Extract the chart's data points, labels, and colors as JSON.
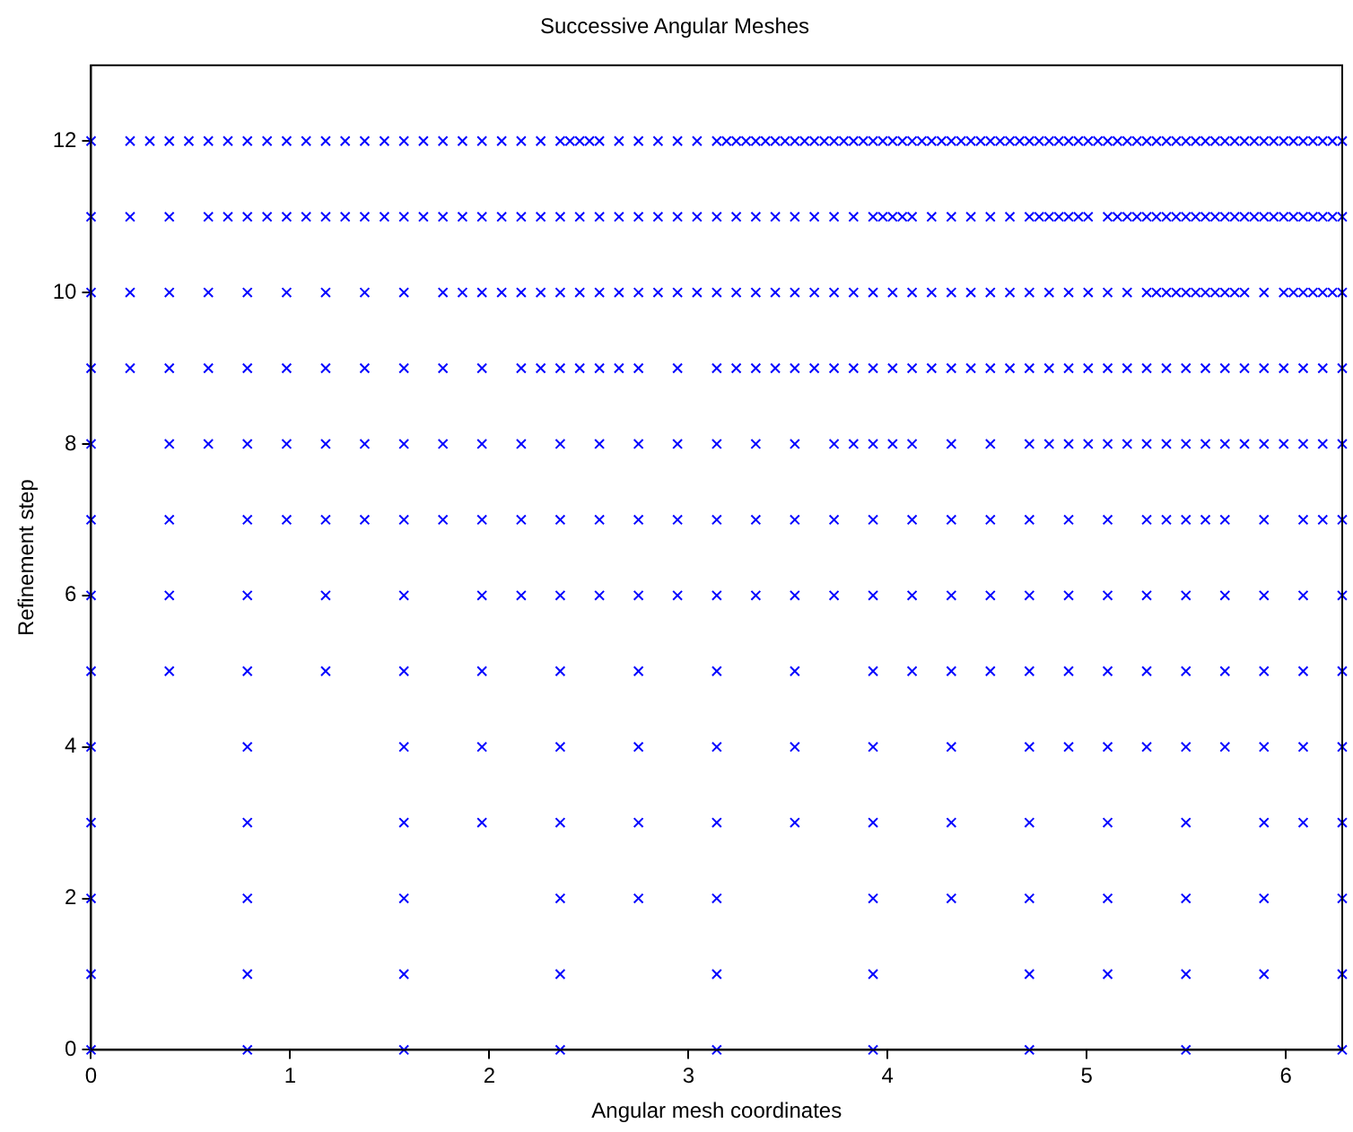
{
  "chart_data": {
    "type": "scatter",
    "title": "Successive Angular Meshes",
    "xlabel": "Angular mesh coordinates",
    "ylabel": "Refinement step",
    "marker": "cross",
    "xlim": [
      0,
      6.283
    ],
    "ylim": [
      0,
      13
    ],
    "xticks": [
      0,
      1,
      2,
      3,
      4,
      5,
      6
    ],
    "yticks": [
      0,
      2,
      4,
      6,
      8,
      10,
      12
    ],
    "series": [
      {
        "color": "#0000ff",
        "x": [
          0,
          0.785,
          1.571,
          2.356,
          3.142,
          3.927,
          4.712,
          5.498,
          6.283
        ],
        "values": [
          0,
          0,
          0,
          0,
          0,
          0,
          0,
          0,
          0
        ]
      },
      {
        "color": "#0000ff",
        "x": [
          0,
          0.785,
          1.571,
          2.356,
          3.142,
          3.927,
          4.712,
          5.105,
          5.498,
          5.89,
          6.283
        ],
        "values": [
          1,
          1,
          1,
          1,
          1,
          1,
          1,
          1,
          1,
          1,
          1
        ]
      },
      {
        "color": "#0000ff",
        "x": [
          0,
          0.785,
          1.571,
          2.356,
          2.749,
          3.142,
          3.927,
          4.32,
          4.712,
          5.105,
          5.498,
          5.89,
          6.283
        ],
        "values": [
          2,
          2,
          2,
          2,
          2,
          2,
          2,
          2,
          2,
          2,
          2,
          2,
          2
        ]
      },
      {
        "color": "#0000ff",
        "x": [
          0,
          0.785,
          1.571,
          1.963,
          2.356,
          2.749,
          3.142,
          3.534,
          3.927,
          4.32,
          4.712,
          5.105,
          5.498,
          5.89,
          6.087,
          6.283
        ],
        "values": [
          3,
          3,
          3,
          3,
          3,
          3,
          3,
          3,
          3,
          3,
          3,
          3,
          3,
          3,
          3,
          3
        ]
      },
      {
        "color": "#0000ff",
        "x": [
          0,
          0.785,
          1.571,
          1.963,
          2.356,
          2.749,
          3.142,
          3.534,
          3.927,
          4.32,
          4.712,
          4.909,
          5.105,
          5.301,
          5.498,
          5.694,
          5.89,
          6.087,
          6.283
        ],
        "values": [
          4,
          4,
          4,
          4,
          4,
          4,
          4,
          4,
          4,
          4,
          4,
          4,
          4,
          4,
          4,
          4,
          4,
          4,
          4
        ]
      },
      {
        "color": "#0000ff",
        "x": [
          0,
          0.393,
          0.785,
          1.178,
          1.571,
          1.963,
          2.356,
          2.749,
          3.142,
          3.534,
          3.927,
          4.123,
          4.32,
          4.516,
          4.712,
          4.909,
          5.105,
          5.301,
          5.498,
          5.694,
          5.89,
          6.087,
          6.283
        ],
        "values": [
          5,
          5,
          5,
          5,
          5,
          5,
          5,
          5,
          5,
          5,
          5,
          5,
          5,
          5,
          5,
          5,
          5,
          5,
          5,
          5,
          5,
          5,
          5
        ]
      },
      {
        "color": "#0000ff",
        "x": [
          0,
          0.393,
          0.785,
          1.178,
          1.571,
          1.963,
          2.16,
          2.356,
          2.553,
          2.749,
          2.945,
          3.142,
          3.338,
          3.534,
          3.731,
          3.927,
          4.123,
          4.32,
          4.516,
          4.712,
          4.909,
          5.105,
          5.301,
          5.498,
          5.694,
          5.89,
          6.087,
          6.283
        ],
        "values": [
          6,
          6,
          6,
          6,
          6,
          6,
          6,
          6,
          6,
          6,
          6,
          6,
          6,
          6,
          6,
          6,
          6,
          6,
          6,
          6,
          6,
          6,
          6,
          6,
          6,
          6,
          6,
          6
        ]
      },
      {
        "color": "#0000ff",
        "x": [
          0,
          0.393,
          0.785,
          0.982,
          1.178,
          1.374,
          1.571,
          1.767,
          1.963,
          2.16,
          2.356,
          2.553,
          2.749,
          2.945,
          3.142,
          3.338,
          3.534,
          3.731,
          3.927,
          4.123,
          4.32,
          4.516,
          4.712,
          4.909,
          5.105,
          5.301,
          5.4,
          5.498,
          5.596,
          5.694,
          5.89,
          6.087,
          6.185,
          6.283
        ],
        "values": [
          7,
          7,
          7,
          7,
          7,
          7,
          7,
          7,
          7,
          7,
          7,
          7,
          7,
          7,
          7,
          7,
          7,
          7,
          7,
          7,
          7,
          7,
          7,
          7,
          7,
          7,
          7,
          7,
          7,
          7,
          7,
          7,
          7,
          7
        ]
      },
      {
        "color": "#0000ff",
        "x": [
          0,
          0.393,
          0.589,
          0.785,
          0.982,
          1.178,
          1.374,
          1.571,
          1.767,
          1.963,
          2.16,
          2.356,
          2.553,
          2.749,
          2.945,
          3.142,
          3.338,
          3.534,
          3.731,
          3.829,
          3.927,
          4.025,
          4.123,
          4.32,
          4.516,
          4.712,
          4.811,
          4.909,
          5.007,
          5.105,
          5.203,
          5.301,
          5.4,
          5.498,
          5.596,
          5.694,
          5.792,
          5.89,
          5.989,
          6.087,
          6.185,
          6.283
        ],
        "values": [
          8,
          8,
          8,
          8,
          8,
          8,
          8,
          8,
          8,
          8,
          8,
          8,
          8,
          8,
          8,
          8,
          8,
          8,
          8,
          8,
          8,
          8,
          8,
          8,
          8,
          8,
          8,
          8,
          8,
          8,
          8,
          8,
          8,
          8,
          8,
          8,
          8,
          8,
          8,
          8,
          8,
          8
        ]
      },
      {
        "color": "#0000ff",
        "x": [
          0,
          0.196,
          0.393,
          0.589,
          0.785,
          0.982,
          1.178,
          1.374,
          1.571,
          1.767,
          1.963,
          2.16,
          2.258,
          2.356,
          2.454,
          2.553,
          2.651,
          2.749,
          2.945,
          3.142,
          3.24,
          3.338,
          3.436,
          3.534,
          3.632,
          3.731,
          3.829,
          3.927,
          4.025,
          4.123,
          4.221,
          4.32,
          4.418,
          4.516,
          4.614,
          4.712,
          4.811,
          4.909,
          5.007,
          5.105,
          5.203,
          5.301,
          5.4,
          5.498,
          5.596,
          5.694,
          5.792,
          5.89,
          5.989,
          6.087,
          6.185,
          6.283
        ],
        "values": [
          9,
          9,
          9,
          9,
          9,
          9,
          9,
          9,
          9,
          9,
          9,
          9,
          9,
          9,
          9,
          9,
          9,
          9,
          9,
          9,
          9,
          9,
          9,
          9,
          9,
          9,
          9,
          9,
          9,
          9,
          9,
          9,
          9,
          9,
          9,
          9,
          9,
          9,
          9,
          9,
          9,
          9,
          9,
          9,
          9,
          9,
          9,
          9,
          9,
          9,
          9,
          9
        ]
      },
      {
        "color": "#0000ff",
        "x": [
          0,
          0.196,
          0.393,
          0.589,
          0.785,
          0.982,
          1.178,
          1.374,
          1.571,
          1.767,
          1.865,
          1.963,
          2.062,
          2.16,
          2.258,
          2.356,
          2.454,
          2.553,
          2.651,
          2.749,
          2.847,
          2.945,
          3.043,
          3.142,
          3.24,
          3.338,
          3.436,
          3.534,
          3.632,
          3.731,
          3.829,
          3.927,
          4.025,
          4.123,
          4.221,
          4.32,
          4.418,
          4.516,
          4.614,
          4.712,
          4.811,
          4.909,
          5.007,
          5.105,
          5.203,
          5.301,
          5.35,
          5.4,
          5.449,
          5.498,
          5.547,
          5.596,
          5.645,
          5.694,
          5.743,
          5.792,
          5.89,
          5.989,
          6.038,
          6.087,
          6.136,
          6.185,
          6.234,
          6.283
        ],
        "values": [
          10,
          10,
          10,
          10,
          10,
          10,
          10,
          10,
          10,
          10,
          10,
          10,
          10,
          10,
          10,
          10,
          10,
          10,
          10,
          10,
          10,
          10,
          10,
          10,
          10,
          10,
          10,
          10,
          10,
          10,
          10,
          10,
          10,
          10,
          10,
          10,
          10,
          10,
          10,
          10,
          10,
          10,
          10,
          10,
          10,
          10,
          10,
          10,
          10,
          10,
          10,
          10,
          10,
          10,
          10,
          10,
          10,
          10,
          10,
          10,
          10,
          10,
          10,
          10
        ]
      },
      {
        "color": "#0000ff",
        "x": [
          0,
          0.196,
          0.393,
          0.589,
          0.687,
          0.785,
          0.884,
          0.982,
          1.08,
          1.178,
          1.276,
          1.374,
          1.473,
          1.571,
          1.669,
          1.767,
          1.865,
          1.963,
          2.062,
          2.16,
          2.258,
          2.356,
          2.454,
          2.553,
          2.651,
          2.749,
          2.847,
          2.945,
          3.043,
          3.142,
          3.24,
          3.338,
          3.436,
          3.534,
          3.632,
          3.731,
          3.829,
          3.927,
          3.976,
          4.025,
          4.074,
          4.123,
          4.221,
          4.32,
          4.418,
          4.516,
          4.614,
          4.712,
          4.761,
          4.811,
          4.86,
          4.909,
          4.958,
          5.007,
          5.105,
          5.154,
          5.203,
          5.252,
          5.301,
          5.35,
          5.4,
          5.449,
          5.498,
          5.547,
          5.596,
          5.645,
          5.694,
          5.743,
          5.792,
          5.841,
          5.89,
          5.939,
          5.989,
          6.038,
          6.087,
          6.136,
          6.185,
          6.234,
          6.283
        ],
        "values": [
          11,
          11,
          11,
          11,
          11,
          11,
          11,
          11,
          11,
          11,
          11,
          11,
          11,
          11,
          11,
          11,
          11,
          11,
          11,
          11,
          11,
          11,
          11,
          11,
          11,
          11,
          11,
          11,
          11,
          11,
          11,
          11,
          11,
          11,
          11,
          11,
          11,
          11,
          11,
          11,
          11,
          11,
          11,
          11,
          11,
          11,
          11,
          11,
          11,
          11,
          11,
          11,
          11,
          11,
          11,
          11,
          11,
          11,
          11,
          11,
          11,
          11,
          11,
          11,
          11,
          11,
          11,
          11,
          11,
          11,
          11,
          11,
          11,
          11,
          11,
          11,
          11,
          11,
          11
        ]
      },
      {
        "color": "#0000ff",
        "x": [
          0,
          0.196,
          0.295,
          0.393,
          0.491,
          0.589,
          0.687,
          0.785,
          0.884,
          0.982,
          1.08,
          1.178,
          1.276,
          1.374,
          1.473,
          1.571,
          1.669,
          1.767,
          1.865,
          1.963,
          2.062,
          2.16,
          2.258,
          2.356,
          2.405,
          2.454,
          2.503,
          2.553,
          2.651,
          2.749,
          2.847,
          2.945,
          3.043,
          3.142,
          3.191,
          3.24,
          3.289,
          3.338,
          3.387,
          3.436,
          3.485,
          3.534,
          3.583,
          3.632,
          3.682,
          3.731,
          3.78,
          3.829,
          3.878,
          3.927,
          3.976,
          4.025,
          4.074,
          4.123,
          4.172,
          4.221,
          4.271,
          4.32,
          4.369,
          4.418,
          4.467,
          4.516,
          4.565,
          4.614,
          4.663,
          4.712,
          4.761,
          4.811,
          4.86,
          4.909,
          4.958,
          5.007,
          5.056,
          5.105,
          5.154,
          5.203,
          5.252,
          5.301,
          5.35,
          5.4,
          5.449,
          5.498,
          5.547,
          5.596,
          5.645,
          5.694,
          5.743,
          5.792,
          5.841,
          5.89,
          5.939,
          5.989,
          6.038,
          6.087,
          6.136,
          6.185,
          6.234,
          6.283
        ],
        "values": [
          12,
          12,
          12,
          12,
          12,
          12,
          12,
          12,
          12,
          12,
          12,
          12,
          12,
          12,
          12,
          12,
          12,
          12,
          12,
          12,
          12,
          12,
          12,
          12,
          12,
          12,
          12,
          12,
          12,
          12,
          12,
          12,
          12,
          12,
          12,
          12,
          12,
          12,
          12,
          12,
          12,
          12,
          12,
          12,
          12,
          12,
          12,
          12,
          12,
          12,
          12,
          12,
          12,
          12,
          12,
          12,
          12,
          12,
          12,
          12,
          12,
          12,
          12,
          12,
          12,
          12,
          12,
          12,
          12,
          12,
          12,
          12,
          12,
          12,
          12,
          12,
          12,
          12,
          12,
          12,
          12,
          12,
          12,
          12,
          12,
          12,
          12,
          12,
          12,
          12,
          12,
          12,
          12,
          12,
          12,
          12,
          12,
          12
        ]
      }
    ]
  }
}
